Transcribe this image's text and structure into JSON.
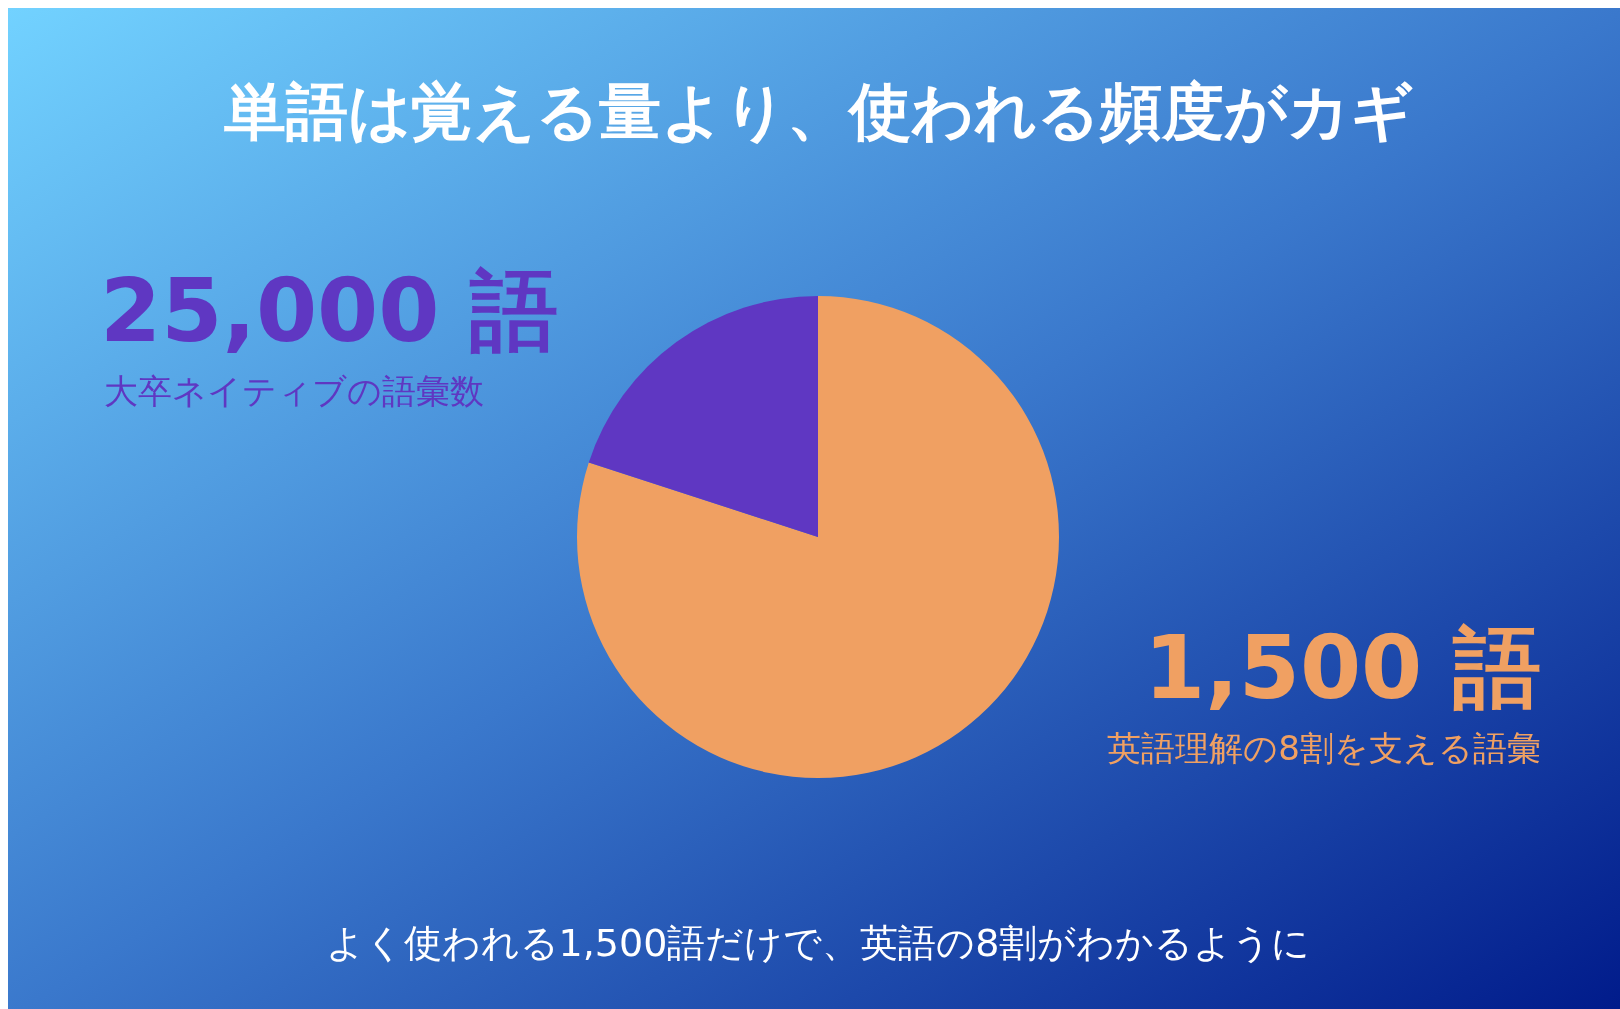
{
  "chart_data": {
    "type": "pie",
    "title": "単語は覚える量より、使われる頻度がカギ",
    "categories": [
      "英語理解の8割を支える語彙",
      "大卒ネイティブの語彙数"
    ],
    "values": [
      80,
      20
    ],
    "colors": [
      "#f0a062",
      "#5f37c2"
    ],
    "annotations": [
      "1,500 語",
      "25,000 語",
      "よく使われる1,500語だけで、英語の8割がわかるように"
    ]
  }
}
